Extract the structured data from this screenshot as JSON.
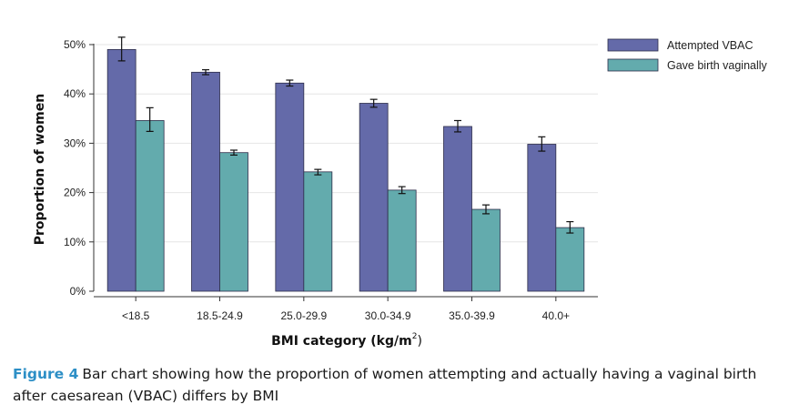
{
  "chart_data": {
    "type": "bar",
    "categories": [
      "<18.5",
      "18.5-24.9",
      "25.0-29.9",
      "30.0-34.9",
      "35.0-39.9",
      "40.0+"
    ],
    "series": [
      {
        "name": "Attempted VBAC",
        "color": "#646aa9",
        "values": [
          49.0,
          44.4,
          42.2,
          38.1,
          33.4,
          29.8
        ],
        "err_low": [
          46.7,
          43.9,
          41.6,
          37.3,
          32.3,
          28.4
        ],
        "err_high": [
          51.5,
          44.9,
          42.8,
          38.9,
          34.6,
          31.3
        ]
      },
      {
        "name": "Gave birth vaginally",
        "color": "#63abad",
        "values": [
          34.6,
          28.1,
          24.2,
          20.5,
          16.6,
          12.9
        ],
        "err_low": [
          32.4,
          27.6,
          23.6,
          19.8,
          15.7,
          11.8
        ],
        "err_high": [
          37.2,
          28.6,
          24.7,
          21.2,
          17.5,
          14.1
        ]
      }
    ],
    "ylim": [
      0,
      50
    ],
    "yticks": [
      "0%",
      "10%",
      "20%",
      "30%",
      "40%",
      "50%"
    ],
    "ylabel": "Proportion of women",
    "xlabel": "BMI category (kg/m",
    "xlabel_sup": "2",
    "xlabel_close": ")",
    "grid": true,
    "legend": "top-right"
  },
  "caption": {
    "label": "Figure 4",
    "text": "Bar chart showing how the proportion of women attempting and actually having a vaginal birth after caesarean (VBAC) differs by BMI"
  }
}
